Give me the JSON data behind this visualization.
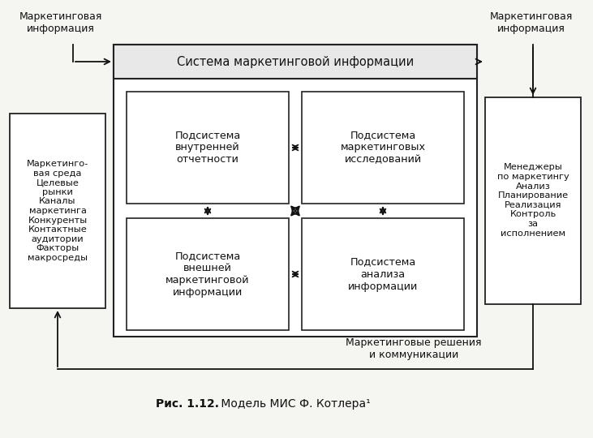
{
  "bg_color": "#f5f5f2",
  "title_bold": "Рис. 1.12.",
  "title_normal": " Модель МИС Ф. Котлера¹",
  "label_marketing_info_left": "Маркетинговая\nинформация",
  "label_marketing_info_right": "Маркетинговая\nинформация",
  "label_marketing_decisions": "Маркетинговые решения\nи коммуникации",
  "label_env": "Маркетинго-\nвая среда\nЦелевые\nрынки\nКаналы\nмаркетинга\nКонкуренты\nКонтактные\nаудитории\nФакторы\nмакросреды",
  "label_managers": "Менеджеры\nпо маркетингу\nАнализ\nПланирование\nРеализация\nКонтроль\nза\nисполнением",
  "label_system": "Система маркетинговой информации",
  "label_sub1": "Подсистема\nвнутренней\nотчетности",
  "label_sub2": "Подсистема\nмаркетинговых\nисследований",
  "label_sub3": "Подсистема\nвнешней\nмаркетинговой\nинформации",
  "label_sub4": "Подсистема\nанализа\nинформации",
  "box_color": "#ffffff",
  "border_color": "#222222",
  "text_color": "#111111",
  "arrow_color": "#111111",
  "sysbar_color": "#e8e8e8"
}
